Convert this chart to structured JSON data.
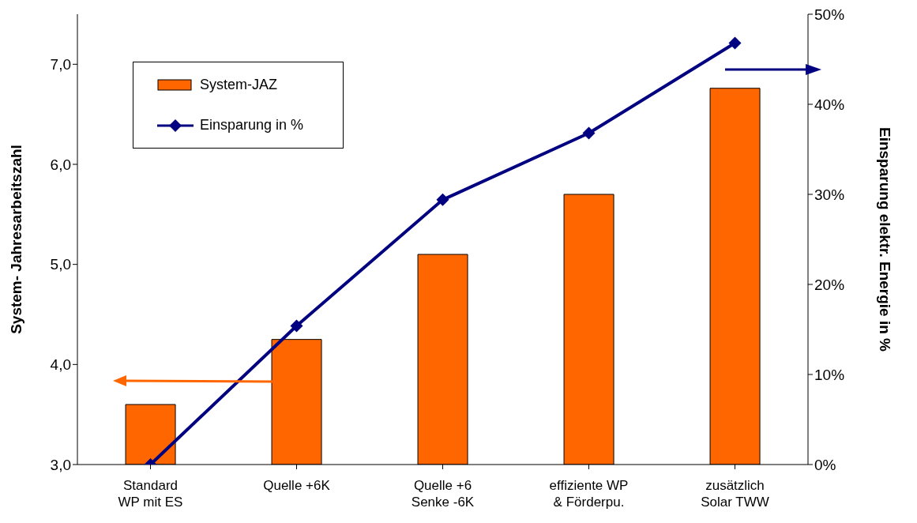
{
  "chart_data": {
    "type": "bar",
    "categories": [
      "Standard\nWP mit ES",
      "Quelle +6K",
      "Quelle +6\nSenke -6K",
      "effiziente WP\n& Förderpu.",
      "zusätzlich\nSolar TWW"
    ],
    "series": [
      {
        "name": "System-JAZ",
        "color": "#ff6600",
        "values": [
          3.6,
          4.25,
          5.1,
          5.7,
          6.76
        ]
      },
      {
        "name": "Einsparung in %",
        "type": "line",
        "axis": "y2",
        "color": "#000080",
        "values": [
          0,
          15.4,
          29.4,
          36.8,
          46.8
        ]
      }
    ],
    "ylabel": "System- Jahresarbeitszahl",
    "y2label": "Einsparung elektr. Energie in %",
    "ylim": [
      3,
      7.5
    ],
    "yticks": [
      {
        "value": 3,
        "label": "3,0"
      },
      {
        "value": 4,
        "label": "4,0"
      },
      {
        "value": 5,
        "label": "5,0"
      },
      {
        "value": 6,
        "label": "6,0"
      },
      {
        "value": 7,
        "label": "7,0"
      }
    ],
    "y2lim": [
      0,
      50
    ],
    "y2ticks": [
      {
        "value": 0,
        "label": "0%"
      },
      {
        "value": 10,
        "label": "10%"
      },
      {
        "value": 20,
        "label": "20%"
      },
      {
        "value": 30,
        "label": "30%"
      },
      {
        "value": 40,
        "label": "40%"
      },
      {
        "value": 50,
        "label": "50%"
      }
    ],
    "grid": false,
    "legend": "top left",
    "marker": "diamond",
    "line_style": "solid"
  }
}
